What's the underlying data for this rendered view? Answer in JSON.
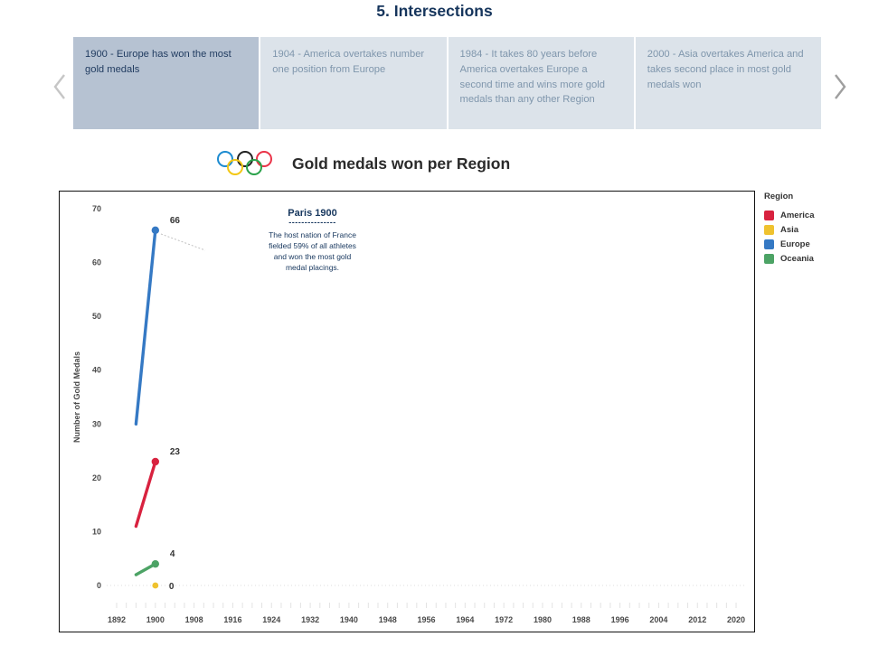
{
  "page": {
    "title": "5. Intersections"
  },
  "story": {
    "captions": [
      {
        "text": "1900 - Europe has won the most gold medals",
        "selected": true
      },
      {
        "text": "1904 - America overtakes number one position from Europe",
        "selected": false
      },
      {
        "text": "1984 - It takes 80 years before America overtakes Europe a second time and wins more gold medals than any other Region",
        "selected": false
      },
      {
        "text": "2000 - Asia overtakes America and takes second place in most gold medals won",
        "selected": false
      }
    ]
  },
  "chart": {
    "title": "Gold medals won per Region",
    "legend": {
      "title": "Region",
      "items": [
        {
          "label": "America",
          "color": "#d8223f"
        },
        {
          "label": "Asia",
          "color": "#efc22f"
        },
        {
          "label": "Europe",
          "color": "#3579c4"
        },
        {
          "label": "Oceania",
          "color": "#4ca365"
        }
      ]
    },
    "annotation": {
      "title": "Paris 1900",
      "separator": "---------------",
      "body": "The host nation of France\nfielded 59% of all athletes\nand won the most gold\nmedal placings."
    },
    "olympic_rings": {
      "top_colors": [
        "#1c8bd0",
        "#222222",
        "#ea3348"
      ],
      "bottom_colors": [
        "#f3c713",
        "#2aa24a"
      ]
    }
  },
  "chart_data": {
    "type": "line",
    "title": "Gold medals won per Region",
    "xlabel": "",
    "ylabel": "Number of Gold Medals",
    "x_ticks": [
      1892,
      1900,
      1908,
      1916,
      1924,
      1932,
      1940,
      1948,
      1956,
      1964,
      1972,
      1980,
      1988,
      1996,
      2004,
      2012,
      2020
    ],
    "minor_tick_step_years": 2,
    "xlim": [
      1888,
      2024
    ],
    "y_ticks": [
      0,
      10,
      20,
      30,
      40,
      50,
      60,
      70
    ],
    "ylim": [
      0,
      73
    ],
    "grid": "zero-line-only",
    "legend_position": "right",
    "series": [
      {
        "name": "America",
        "color": "#d8223f",
        "points": [
          [
            1896,
            11
          ],
          [
            1900,
            23
          ]
        ],
        "end_label": "23"
      },
      {
        "name": "Asia",
        "color": "#efc22f",
        "points": [
          [
            1900,
            0
          ]
        ],
        "end_label": "0"
      },
      {
        "name": "Europe",
        "color": "#3579c4",
        "points": [
          [
            1896,
            30
          ],
          [
            1900,
            66
          ]
        ],
        "end_label": "66"
      },
      {
        "name": "Oceania",
        "color": "#4ca365",
        "points": [
          [
            1896,
            2
          ],
          [
            1900,
            4
          ]
        ],
        "end_label": "4"
      }
    ]
  }
}
